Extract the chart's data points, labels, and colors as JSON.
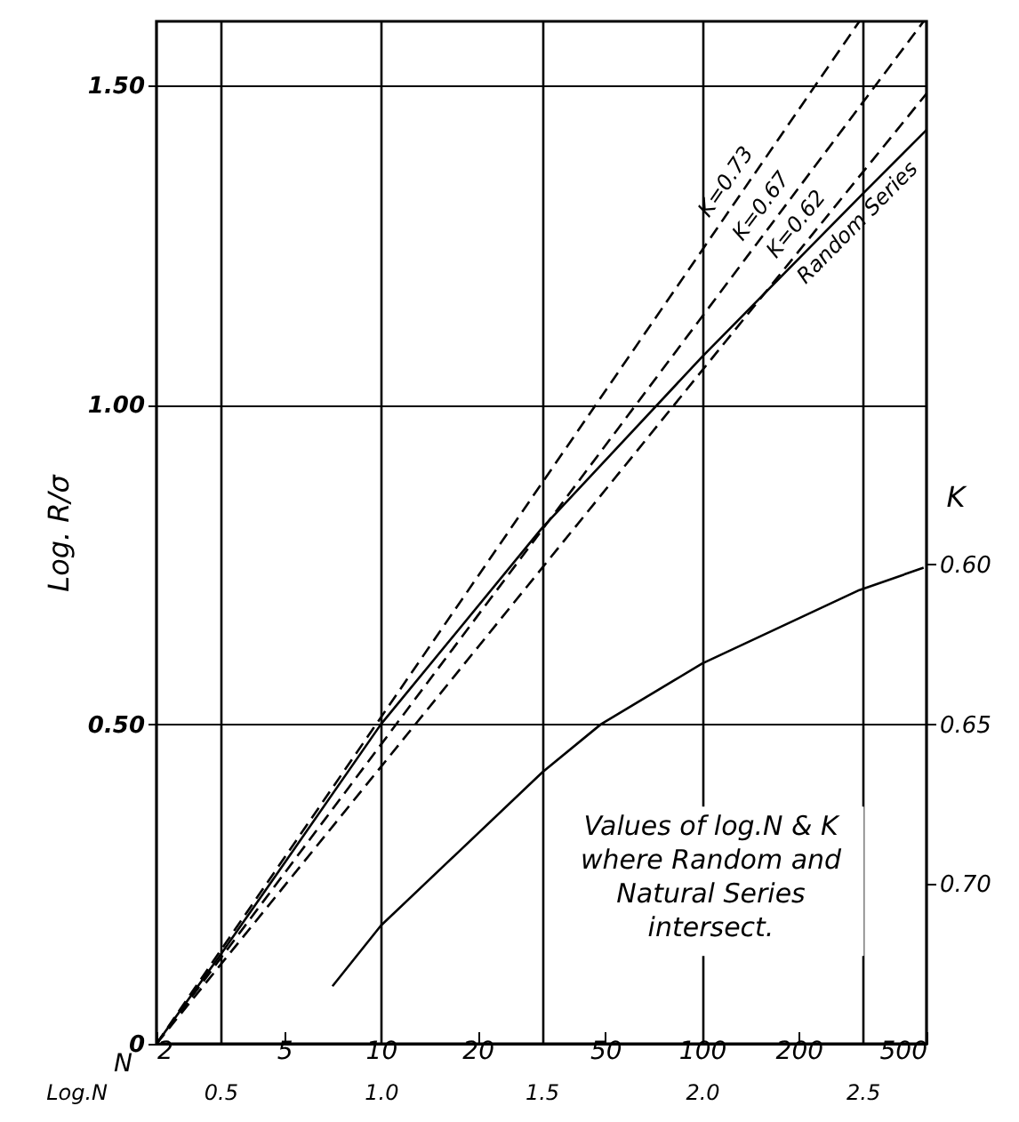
{
  "chart_data": {
    "type": "line",
    "xlabel": "Log.N",
    "x2label": "N",
    "ylabel": "Log. R/σ",
    "y2label": "K",
    "xlim": [
      0.301,
      2.699
    ],
    "ylim": [
      0,
      1.6
    ],
    "y2lim": [
      0.75,
      0.43
    ],
    "xticks": [
      {
        "value": 0.5,
        "label": "0.5"
      },
      {
        "value": 1.0,
        "label": "1.0"
      },
      {
        "value": 1.5,
        "label": "1.5"
      },
      {
        "value": 2.0,
        "label": "2.0"
      },
      {
        "value": 2.5,
        "label": "2.5"
      }
    ],
    "x2lim": [
      2,
      500
    ],
    "log": "x2",
    "x2ticks": [
      2,
      5,
      10,
      20,
      50,
      100,
      200,
      500
    ],
    "yticks": [
      {
        "value": 0,
        "label": "0"
      },
      {
        "value": 0.5,
        "label": "0.50"
      },
      {
        "value": 1.0,
        "label": "1.00"
      },
      {
        "value": 1.5,
        "label": "1.50"
      }
    ],
    "y2ticks": [
      {
        "value": 0.6,
        "label": "0.60"
      },
      {
        "value": 0.65,
        "label": "0.65"
      },
      {
        "value": 0.7,
        "label": "0.70"
      }
    ],
    "grid": true,
    "series": [
      {
        "name": "K=0.73",
        "color": "#000000",
        "line_style": "dashed",
        "x": [
          0.301,
          2.49
        ],
        "values": [
          0,
          1.6
        ]
      },
      {
        "name": "K=0.67",
        "color": "#000000",
        "line_style": "dashed",
        "x": [
          0.301,
          2.69
        ],
        "values": [
          0,
          1.6
        ]
      },
      {
        "name": "K=0.62",
        "color": "#000000",
        "line_style": "dashed",
        "x": [
          0.301,
          2.699
        ],
        "values": [
          0,
          1.487
        ]
      },
      {
        "name": "Random Series",
        "color": "#000000",
        "line_style": "solid",
        "x": [
          0.301,
          0.5,
          0.7,
          1.0,
          1.5,
          2.0,
          2.5,
          2.699
        ],
        "values": [
          0,
          0.139,
          0.283,
          0.5,
          0.806,
          1.075,
          1.33,
          1.43
        ]
      },
      {
        "color": "#000000",
        "line_style": "solid",
        "axis": "y2",
        "x": [
          0.849,
          1.0,
          1.503,
          1.685,
          2.0,
          2.49,
          2.69
        ],
        "values": [
          0.732,
          0.713,
          0.665,
          0.65,
          0.631,
          0.608,
          0.601
        ]
      }
    ],
    "annotations": [
      "Values of log.N & K\nwhere Random and\nNatural Series\nintersect."
    ]
  }
}
